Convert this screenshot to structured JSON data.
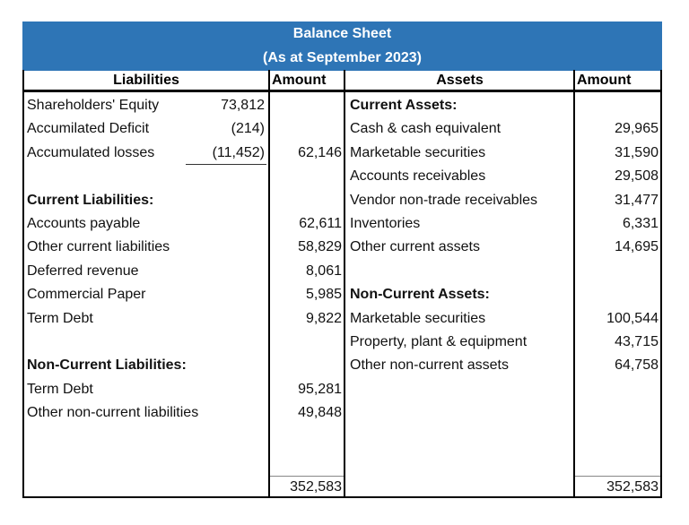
{
  "title": "Balance Sheet",
  "subtitle": "(As at September 2023)",
  "headers": {
    "liabilities": "Liabilities",
    "amount_left": "Amount",
    "assets": "Assets",
    "amount_right": "Amount"
  },
  "liabilities": [
    {
      "label": "Shareholders' Equity",
      "sub": "73,812",
      "amount": "",
      "bold": false
    },
    {
      "label": "Accumilated Deficit",
      "sub": "(214)",
      "amount": "",
      "bold": false
    },
    {
      "label": "Accumulated losses",
      "sub": "(11,452)",
      "amount": "62,146",
      "bold": false,
      "underline_sub": true
    },
    {
      "label": "",
      "sub": "",
      "amount": "",
      "bold": false
    },
    {
      "label": "Current Liabilities:",
      "sub": "",
      "amount": "",
      "bold": true
    },
    {
      "label": "Accounts payable",
      "sub": "",
      "amount": "62,611",
      "bold": false
    },
    {
      "label": "Other current liabilities",
      "sub": "",
      "amount": "58,829",
      "bold": false
    },
    {
      "label": "Deferred revenue",
      "sub": "",
      "amount": "8,061",
      "bold": false
    },
    {
      "label": "Commercial Paper",
      "sub": "",
      "amount": "5,985",
      "bold": false
    },
    {
      "label": "Term Debt",
      "sub": "",
      "amount": "9,822",
      "bold": false
    },
    {
      "label": "",
      "sub": "",
      "amount": "",
      "bold": false
    },
    {
      "label": "Non-Current Liabilities:",
      "sub": "",
      "amount": "",
      "bold": true
    },
    {
      "label": "Term Debt",
      "sub": "",
      "amount": "95,281",
      "bold": false
    },
    {
      "label": "Other non-current liabilities",
      "sub": "",
      "amount": "49,848",
      "bold": false
    }
  ],
  "assets": [
    {
      "label": "Current Assets:",
      "amount": "",
      "bold": true
    },
    {
      "label": "Cash & cash equivalent",
      "amount": "29,965",
      "bold": false
    },
    {
      "label": "Marketable securities",
      "amount": "31,590",
      "bold": false
    },
    {
      "label": "Accounts receivables",
      "amount": "29,508",
      "bold": false
    },
    {
      "label": "Vendor non-trade receivables",
      "amount": "31,477",
      "bold": false
    },
    {
      "label": "Inventories",
      "amount": "6,331",
      "bold": false
    },
    {
      "label": "Other current assets",
      "amount": "14,695",
      "bold": false
    },
    {
      "label": "",
      "amount": "",
      "bold": false
    },
    {
      "label": "Non-Current Assets:",
      "amount": "",
      "bold": true
    },
    {
      "label": "Marketable securities",
      "amount": "100,544",
      "bold": false
    },
    {
      "label": "Property, plant & equipment",
      "amount": "43,715",
      "bold": false
    },
    {
      "label": "Other non-current assets",
      "amount": "64,758",
      "bold": false
    }
  ],
  "totals": {
    "liabilities": "352,583",
    "assets": "352,583"
  },
  "colors": {
    "header_bg": "#2E75B6",
    "header_text": "#FFFFFF"
  }
}
